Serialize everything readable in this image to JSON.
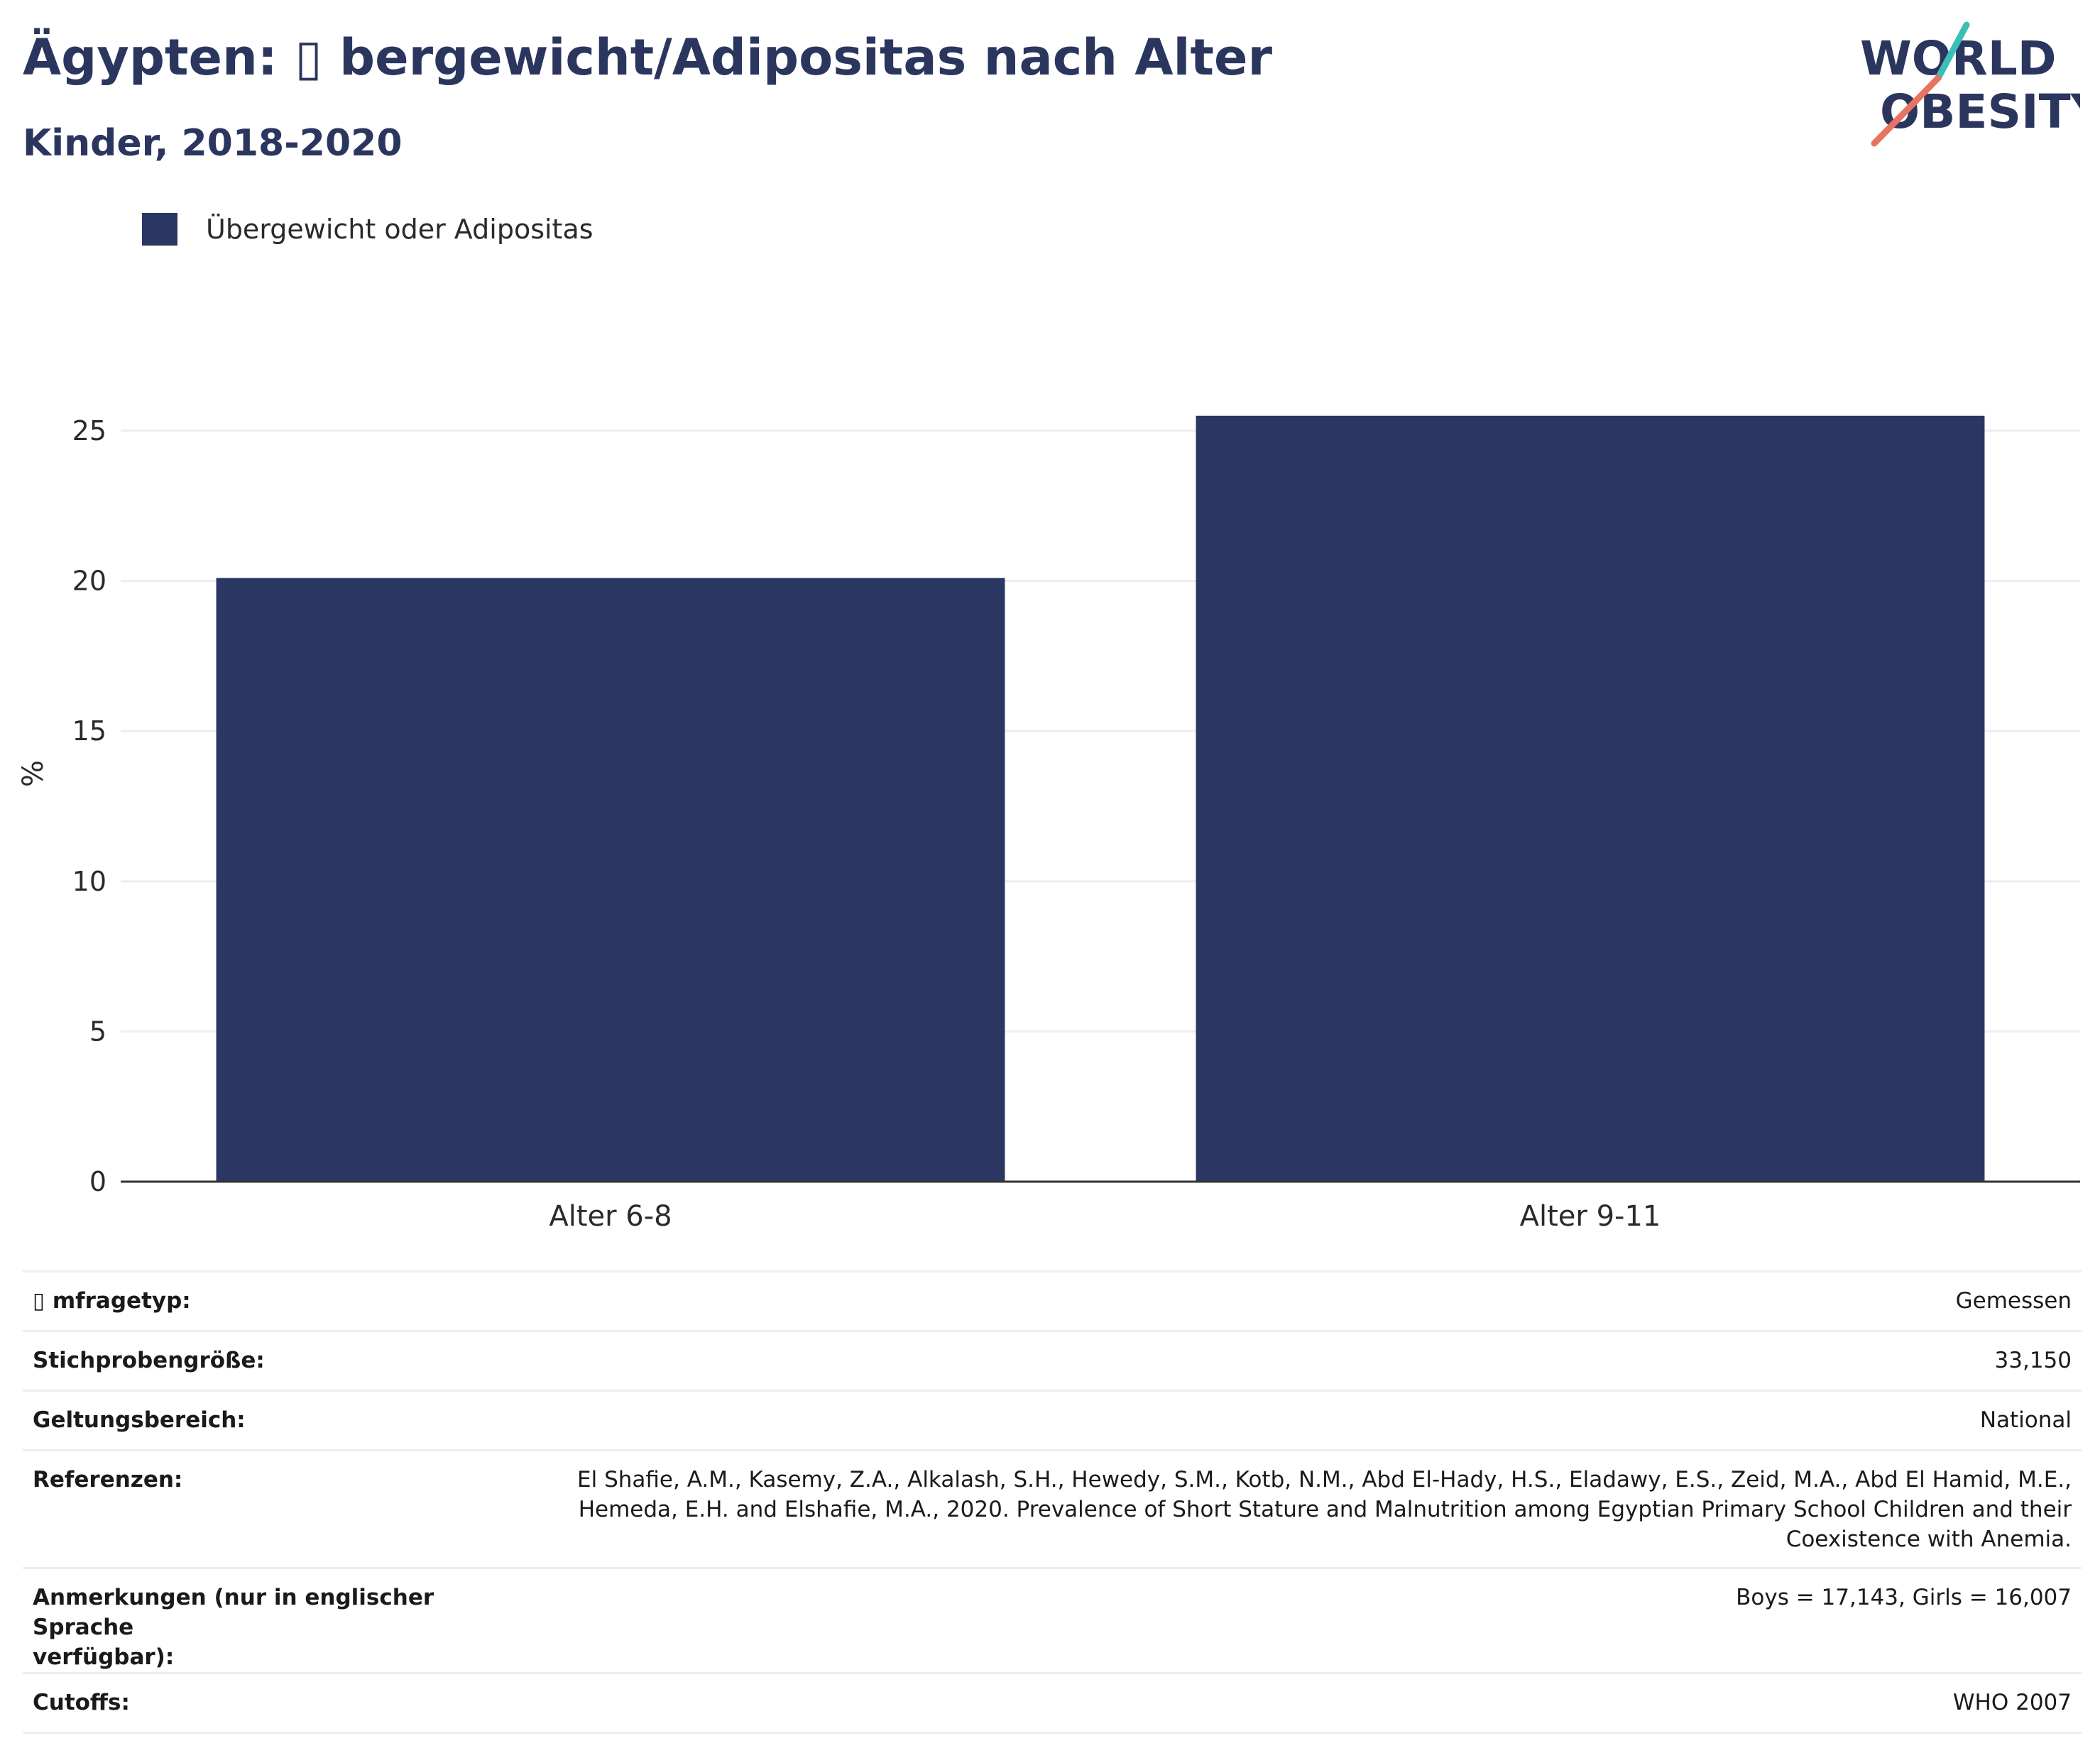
{
  "header": {
    "title": "Ägypten: ▯ bergewicht/Adipositas nach Alter",
    "subtitle": "Kinder, 2018-2020"
  },
  "logo": {
    "line1": "WORLD",
    "line2": "OBESITY",
    "icon": "world-obesity-logo"
  },
  "colors": {
    "bar": "#2b3763",
    "title": "#2b365f",
    "grid": "#eceef3",
    "axis": "#333333",
    "logo_teal": "#3bbfb8",
    "logo_coral": "#e8735f"
  },
  "chart_data": {
    "type": "bar",
    "title": "Ägypten: ▯ bergewicht/Adipositas nach Alter",
    "subtitle": "Kinder, 2018-2020",
    "categories": [
      "Alter 6-8",
      "Alter 9-11"
    ],
    "series": [
      {
        "name": "Übergewicht oder Adipositas",
        "values": [
          20.1,
          25.5
        ]
      }
    ],
    "xlabel": "",
    "ylabel": "%",
    "ylim": [
      0,
      28
    ],
    "yticks": [
      0,
      5,
      10,
      15,
      20,
      25
    ],
    "grid": true,
    "legend": "top-left"
  },
  "info_rows": [
    {
      "key": "▯ mfragetyp:",
      "value": [
        "Gemessen"
      ]
    },
    {
      "key": "Stichprobengröße:",
      "value": [
        "33,150"
      ]
    },
    {
      "key": "Geltungsbereich:",
      "value": [
        "National"
      ]
    },
    {
      "key": "Referenzen:",
      "value": [
        "El Shafie, A.M., Kasemy, Z.A., Alkalash, S.H., Hewedy, S.M., Kotb, N.M., Abd El-Hady, H.S., Eladawy, E.S., Zeid, M.A., Abd El Hamid, M.E.,",
        "Hemeda, E.H. and Elshafie, M.A., 2020. Prevalence of Short Stature and Malnutrition among Egyptian Primary School Children and their",
        "Coexistence with Anemia."
      ]
    },
    {
      "key": [
        "Anmerkungen (nur in englischer Sprache",
        "verfügbar):"
      ],
      "value": [
        "Boys = 17,143, Girls = 16,007"
      ]
    },
    {
      "key": "Cutoffs:",
      "value": [
        "WHO 2007"
      ]
    }
  ]
}
